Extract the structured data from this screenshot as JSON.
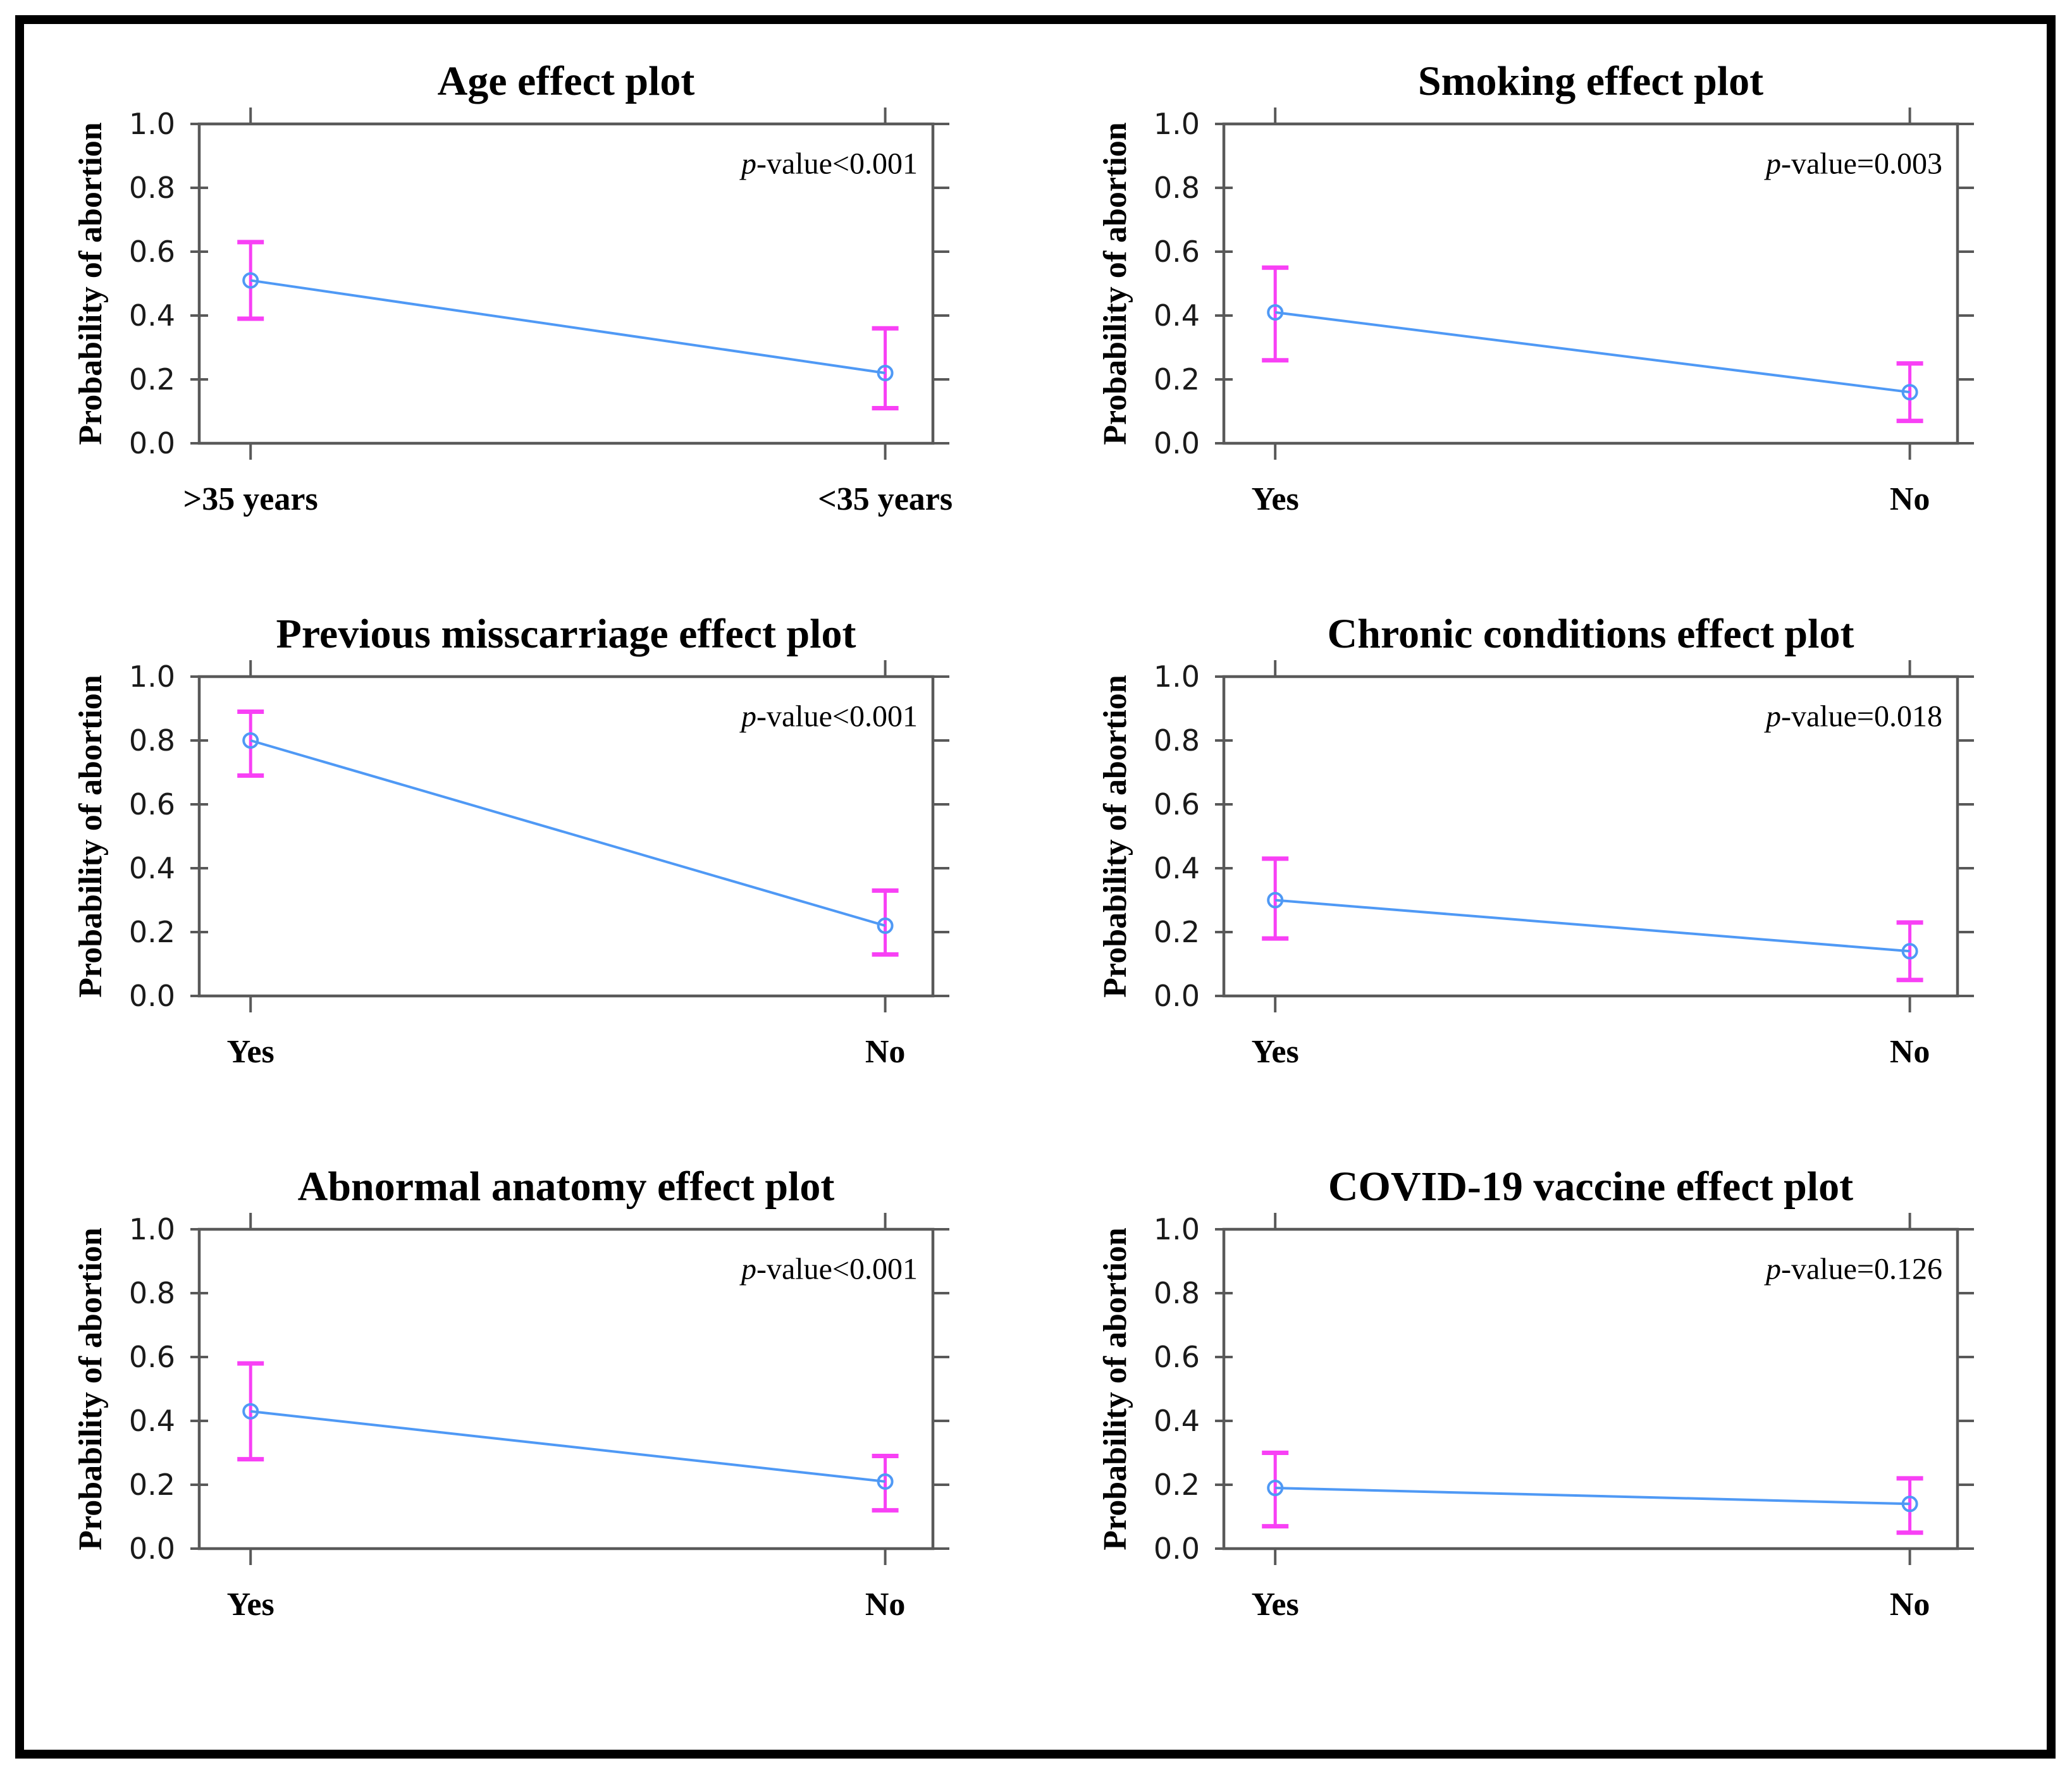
{
  "shared": {
    "ylabel": "Probability of abortion",
    "ytick_labels": [
      "0.0",
      "0.2",
      "0.4",
      "0.6",
      "0.8",
      "1.0"
    ]
  },
  "style": {
    "background": "#ffffff",
    "border_color": "#000000",
    "axis_color": "#595959",
    "line_color": "#4f99f5",
    "errorbar_color": "#f840f5",
    "marker_color": "#4f99f5",
    "tick_label_color": "#1a1a1a",
    "text_color": "#000000"
  },
  "chart_data": [
    {
      "type": "line",
      "title": "Age effect plot",
      "p_italic": "p",
      "p_text": "-value<0.001",
      "categories": [
        ">35 years",
        "<35 years"
      ],
      "values": [
        0.51,
        0.22
      ],
      "ci_low": [
        0.39,
        0.11
      ],
      "ci_high": [
        0.63,
        0.36
      ],
      "ylabel": "Probability of abortion",
      "ylim": [
        0,
        1
      ],
      "yticks": [
        0,
        0.2,
        0.4,
        0.6,
        0.8,
        1
      ],
      "grid": "off",
      "legend": "none"
    },
    {
      "type": "line",
      "title": "Smoking effect plot",
      "p_italic": "p",
      "p_text": "-value=0.003",
      "categories": [
        "Yes",
        "No"
      ],
      "values": [
        0.41,
        0.16
      ],
      "ci_low": [
        0.26,
        0.07
      ],
      "ci_high": [
        0.55,
        0.25
      ],
      "ylabel": "Probability of abortion",
      "ylim": [
        0,
        1
      ],
      "yticks": [
        0,
        0.2,
        0.4,
        0.6,
        0.8,
        1
      ],
      "grid": "off",
      "legend": "none"
    },
    {
      "type": "line",
      "title": "Previous misscarriage effect plot",
      "p_italic": "p",
      "p_text": "-value<0.001",
      "categories": [
        "Yes",
        "No"
      ],
      "values": [
        0.8,
        0.22
      ],
      "ci_low": [
        0.69,
        0.13
      ],
      "ci_high": [
        0.89,
        0.33
      ],
      "ylabel": "Probability of abortion",
      "ylim": [
        0,
        1
      ],
      "yticks": [
        0,
        0.2,
        0.4,
        0.6,
        0.8,
        1
      ],
      "grid": "off",
      "legend": "none"
    },
    {
      "type": "line",
      "title": "Chronic conditions effect plot",
      "p_italic": "p",
      "p_text": "-value=0.018",
      "categories": [
        "Yes",
        "No"
      ],
      "values": [
        0.3,
        0.14
      ],
      "ci_low": [
        0.18,
        0.05
      ],
      "ci_high": [
        0.43,
        0.23
      ],
      "ylabel": "Probability of abortion",
      "ylim": [
        0,
        1
      ],
      "yticks": [
        0,
        0.2,
        0.4,
        0.6,
        0.8,
        1
      ],
      "grid": "off",
      "legend": "none"
    },
    {
      "type": "line",
      "title": "Abnormal anatomy effect plot",
      "p_italic": "p",
      "p_text": "-value<0.001",
      "categories": [
        "Yes",
        "No"
      ],
      "values": [
        0.43,
        0.21
      ],
      "ci_low": [
        0.28,
        0.12
      ],
      "ci_high": [
        0.58,
        0.29
      ],
      "ylabel": "Probability of abortion",
      "ylim": [
        0,
        1
      ],
      "yticks": [
        0,
        0.2,
        0.4,
        0.6,
        0.8,
        1
      ],
      "grid": "off",
      "legend": "none"
    },
    {
      "type": "line",
      "title": "COVID-19 vaccine effect plot",
      "p_italic": "p",
      "p_text": "-value=0.126",
      "categories": [
        "Yes",
        "No"
      ],
      "values": [
        0.19,
        0.14
      ],
      "ci_low": [
        0.07,
        0.05
      ],
      "ci_high": [
        0.3,
        0.22
      ],
      "ylabel": "Probability of abortion",
      "ylim": [
        0,
        1
      ],
      "yticks": [
        0,
        0.2,
        0.4,
        0.6,
        0.8,
        1
      ],
      "grid": "off",
      "legend": "none"
    }
  ]
}
